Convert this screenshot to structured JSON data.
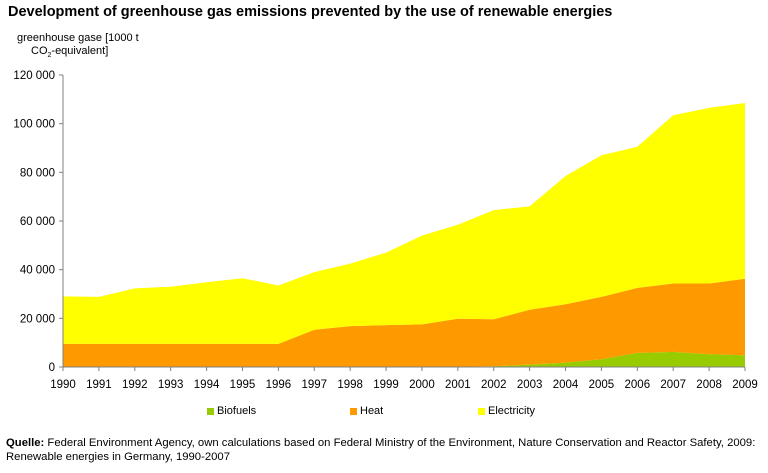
{
  "chart_data": {
    "type": "area",
    "stacked": true,
    "title": "Development of greenhouse gas emissions prevented by the use of renewable energies",
    "ylabel_line1": "greenhouse gase [1000 t",
    "ylabel_line2_prefix": "CO",
    "ylabel_line2_sub": "2",
    "ylabel_line2_suffix": "-equivalent]",
    "xlabel": "",
    "x": [
      "1990",
      "1991",
      "1992",
      "1993",
      "1994",
      "1995",
      "1996",
      "1997",
      "1998",
      "1999",
      "2000",
      "2001",
      "2002",
      "2003",
      "2004",
      "2005",
      "2006",
      "2007",
      "2008",
      "2009"
    ],
    "ylim": [
      0,
      120000
    ],
    "yticks": [
      0,
      20000,
      40000,
      60000,
      80000,
      100000,
      120000
    ],
    "ytick_labels": [
      "0",
      "20 000",
      "40 000",
      "60 000",
      "80 000",
      "100 000",
      "120 000"
    ],
    "grid": false,
    "legend_position": "bottom",
    "series": [
      {
        "name": "Biofuels",
        "color": "#99cc00",
        "values": [
          0,
          0,
          0,
          0,
          0,
          0,
          0,
          0,
          0,
          0,
          0,
          100,
          300,
          1000,
          1800,
          3200,
          5800,
          6200,
          5200,
          4800
        ]
      },
      {
        "name": "Heat",
        "color": "#ff9900",
        "values": [
          9500,
          9500,
          9500,
          9500,
          9500,
          9500,
          9500,
          15300,
          16800,
          17200,
          17500,
          19700,
          19300,
          22500,
          24000,
          25600,
          26700,
          28100,
          29100,
          31500
        ]
      },
      {
        "name": "Electricity",
        "color": "#ffff00",
        "values": [
          19500,
          19300,
          22800,
          23500,
          25300,
          27000,
          24000,
          23700,
          25700,
          29800,
          36500,
          38700,
          44900,
          42500,
          52700,
          58200,
          58000,
          69200,
          72200,
          72200
        ]
      }
    ]
  },
  "legend": [
    {
      "label": "Biofuels",
      "color": "#99cc00"
    },
    {
      "label": "Heat",
      "color": "#ff9900"
    },
    {
      "label": "Electricity",
      "color": "#ffff00"
    }
  ],
  "source": {
    "label": "Quelle:",
    "text": " Federal Environment Agency, own calculations based on Federal Ministry of the Environment, Nature Conservation and Reactor Safety, 2009: Renewable energies in Germany, 1990-2007"
  }
}
